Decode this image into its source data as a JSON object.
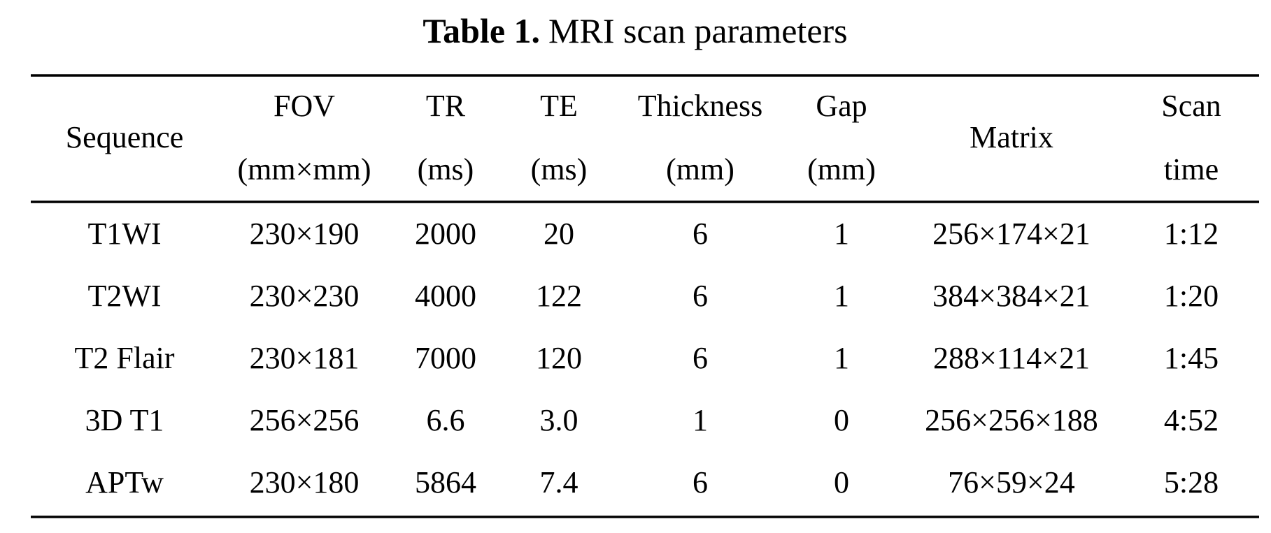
{
  "title": {
    "label": "Table 1.",
    "text": "MRI scan parameters"
  },
  "table": {
    "header": [
      [
        "Sequence"
      ],
      [
        "FOV",
        "(mm×mm)"
      ],
      [
        "TR",
        "(ms)"
      ],
      [
        "TE",
        "(ms)"
      ],
      [
        "Thickness",
        "(mm)"
      ],
      [
        "Gap",
        "(mm)"
      ],
      [
        "Matrix"
      ],
      [
        "Scan",
        "time"
      ]
    ],
    "rows": [
      [
        "T1WI",
        "230×190",
        "2000",
        "20",
        "6",
        "1",
        "256×174×21",
        "1:12"
      ],
      [
        "T2WI",
        "230×230",
        "4000",
        "122",
        "6",
        "1",
        "384×384×21",
        "1:20"
      ],
      [
        "T2 Flair",
        "230×181",
        "7000",
        "120",
        "6",
        "1",
        "288×114×21",
        "1:45"
      ],
      [
        "3D T1",
        "256×256",
        "6.6",
        "3.0",
        "1",
        "0",
        "256×256×188",
        "4:52"
      ],
      [
        "APTw",
        "230×180",
        "5864",
        "7.4",
        "6",
        "0",
        "76×59×24",
        "5:28"
      ]
    ]
  }
}
